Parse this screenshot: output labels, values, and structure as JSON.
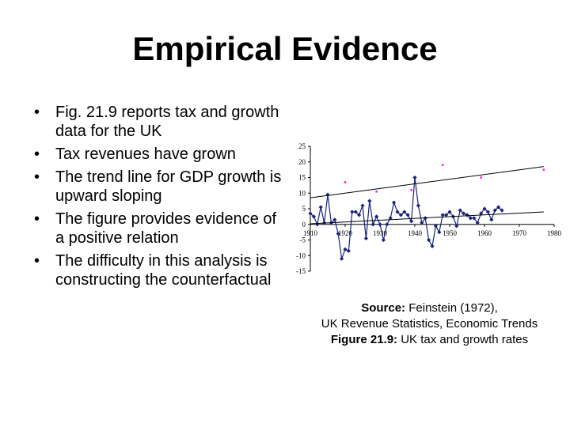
{
  "slide": {
    "title": "Empirical Evidence",
    "bullets": [
      "Fig. 21.9 reports tax and growth data for the UK",
      "Tax revenues have grown",
      "The trend line for GDP growth is upward sloping",
      "The figure provides evidence of a positive relation",
      "The difficulty in this analysis is constructing the counterfactual"
    ],
    "bullet_marker": "•",
    "caption": {
      "source_label": "Source:",
      "source_text": "Feinstein (1972),",
      "source_line2": "UK Revenue Statistics, Economic Trends",
      "figure_label": "Figure 21.9:",
      "figure_text": "UK tax and growth rates"
    }
  },
  "chart_data": {
    "type": "line",
    "title": "",
    "xlabel": "",
    "ylabel": "",
    "xlim": [
      1910,
      1980
    ],
    "ylim": [
      -15,
      25
    ],
    "x_ticks": [
      "1910",
      "1920",
      "1930",
      "1940",
      "1950",
      "1960",
      "1970",
      "1980"
    ],
    "y_ticks": [
      "25",
      "20",
      "15",
      "10",
      "5",
      "0",
      "-5",
      "-10",
      "-15"
    ],
    "grid": false,
    "legend": "none",
    "series": [
      {
        "kind": "line-markers",
        "color": "#1a237e",
        "x": [
          1910,
          1911,
          1912,
          1913,
          1914,
          1915,
          1916,
          1917,
          1918,
          1919,
          1920,
          1921,
          1922,
          1923,
          1924,
          1925,
          1926,
          1927,
          1928,
          1929,
          1930,
          1931,
          1932,
          1933,
          1934,
          1935,
          1936,
          1937,
          1938,
          1939,
          1940,
          1941,
          1942,
          1943,
          1944,
          1945,
          1946,
          1947,
          1948,
          1949,
          1950,
          1951,
          1952,
          1953,
          1954,
          1955,
          1956,
          1957,
          1958,
          1959,
          1960,
          1961,
          1962,
          1963,
          1964,
          1965
        ],
        "y": [
          3.5,
          2.5,
          0,
          5.5,
          0.5,
          9.5,
          0.5,
          1.5,
          -3,
          -11,
          -8,
          -8.5,
          4,
          4,
          3,
          6,
          -4.5,
          7.5,
          0,
          2.5,
          0,
          -5,
          0,
          2,
          7,
          4,
          3,
          4,
          3,
          1,
          15,
          6,
          0.5,
          2,
          -5,
          -7,
          -0.5,
          -2.5,
          3,
          3,
          4,
          2.5,
          -0.5,
          4.5,
          3.5,
          3,
          2,
          2,
          0.5,
          3.5,
          5,
          4,
          1.5,
          4.5,
          5.5,
          4.5
        ]
      },
      {
        "kind": "scatter",
        "color": "#ff00ff",
        "x": [
          1920,
          1929,
          1939,
          1948,
          1959,
          1977
        ],
        "y": [
          13.5,
          10.5,
          11,
          19,
          15,
          17.5
        ]
      },
      {
        "kind": "trend",
        "color": "#000000",
        "x": [
          1910,
          1977
        ],
        "y": [
          8.5,
          18.5
        ]
      },
      {
        "kind": "trend",
        "color": "#000000",
        "x": [
          1910,
          1977
        ],
        "y": [
          0.2,
          4.0
        ]
      }
    ]
  }
}
